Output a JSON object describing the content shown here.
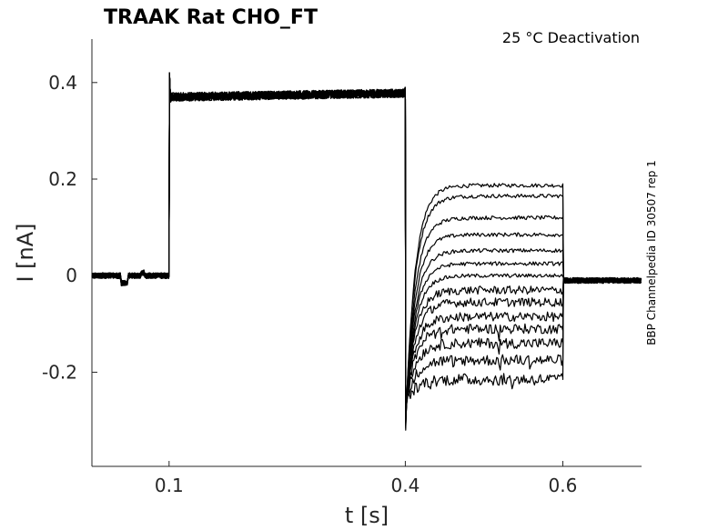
{
  "chart_data": {
    "type": "line",
    "title": "TRAAK  Rat  CHO_FT",
    "condition": "25 °C  Deactivation",
    "xlabel": "t [s]",
    "ylabel": "I [nA]",
    "side_label": "BBP Channelpedia ID 30507 rep 1",
    "xlim": [
      0.002,
      0.7
    ],
    "ylim": [
      -0.395,
      0.49
    ],
    "xticks": [
      0.1,
      0.4,
      0.6
    ],
    "xtick_labels": [
      "0.1",
      "0.4",
      "0.6"
    ],
    "yticks": [
      0.4,
      0.2,
      0,
      -0.2
    ],
    "ytick_labels": [
      "0.4",
      "0.2",
      "0",
      "-0.2"
    ],
    "grid": false,
    "protocol": {
      "baseline_nA": 0.0,
      "prepulse_start_s": 0.1,
      "prepulse_end_s": 0.4,
      "prepulse_level_nA": 0.37,
      "test_end_s": 0.6
    },
    "series_test_levels_nA": [
      0.187,
      0.165,
      0.12,
      0.085,
      0.052,
      0.025,
      0.0,
      -0.03,
      -0.055,
      -0.085,
      -0.11,
      -0.14,
      -0.175,
      -0.215
    ],
    "line_color": "#000000"
  }
}
